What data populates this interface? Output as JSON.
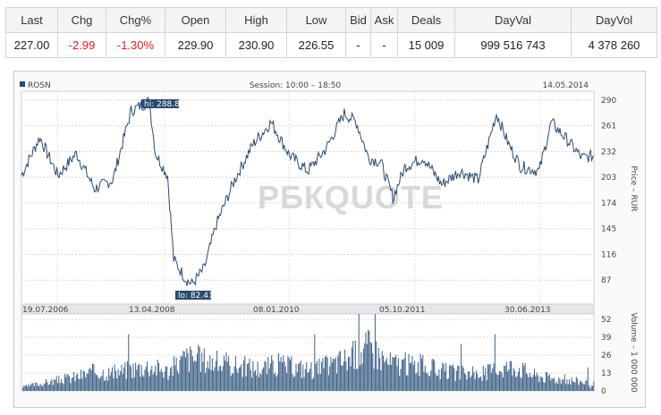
{
  "quote_table": {
    "headers": [
      "Last",
      "Chg",
      "Chg%",
      "Open",
      "High",
      "Low",
      "Bid",
      "Ask",
      "Deals",
      "DayVal",
      "DayVol"
    ],
    "values": [
      "227.00",
      "-2.99",
      "-1.30%",
      "229.90",
      "230.90",
      "226.55",
      "-",
      "-",
      "15 009",
      "999 516 743",
      "4 378 260"
    ],
    "negative_color": "#e0201c"
  },
  "chart_data": [
    {
      "type": "line",
      "ticker": "ROSN",
      "session": "Session: 10:00 – 18:50",
      "date": "14.05.2014",
      "ylabel": "Price – RUR",
      "yticks": [
        87,
        116,
        145,
        174,
        203,
        232,
        261,
        290
      ],
      "ylim": [
        60,
        300
      ],
      "xtick_labels": [
        "19.07.2006",
        "13.04.2008",
        "08.01.2010",
        "05.10.2011",
        "30.06.2013"
      ],
      "hi_label": "hi: 288.8",
      "lo_label": "lo: 82.41",
      "watermark": "РБКQUOTE",
      "line_color": "#2b4a6e",
      "x": [
        "2006-07",
        "2006-10",
        "2007-01",
        "2007-04",
        "2007-07",
        "2007-10",
        "2008-01",
        "2008-04",
        "2008-05",
        "2008-07",
        "2008-08",
        "2008-10",
        "2008-11",
        "2009-01",
        "2009-03",
        "2009-06",
        "2009-09",
        "2009-12",
        "2010-03",
        "2010-06",
        "2010-09",
        "2010-12",
        "2011-02",
        "2011-04",
        "2011-06",
        "2011-08",
        "2011-10",
        "2012-01",
        "2012-04",
        "2012-07",
        "2012-10",
        "2013-01",
        "2013-03",
        "2013-05",
        "2013-08",
        "2013-10",
        "2014-01",
        "2014-03",
        "2014-05"
      ],
      "values": [
        205,
        248,
        205,
        230,
        190,
        200,
        278,
        288.8,
        230,
        205,
        110,
        88,
        82.41,
        100,
        150,
        200,
        240,
        265,
        228,
        210,
        235,
        275,
        265,
        225,
        220,
        180,
        215,
        225,
        195,
        210,
        200,
        275,
        240,
        215,
        210,
        265,
        242,
        225,
        227
      ]
    },
    {
      "type": "bar",
      "ylabel": "Volume – 1 000 000",
      "yticks": [
        0,
        13,
        26,
        39,
        52
      ],
      "ylim": [
        0,
        56
      ],
      "bar_color": "#3d5f86",
      "x": [
        "2006-07",
        "2006-10",
        "2007-01",
        "2007-04",
        "2007-07",
        "2007-10",
        "2008-01",
        "2008-04",
        "2008-07",
        "2008-10",
        "2009-01",
        "2009-04",
        "2009-07",
        "2009-10",
        "2010-01",
        "2010-04",
        "2010-07",
        "2010-10",
        "2011-01",
        "2011-04",
        "2011-07",
        "2011-10",
        "2012-01",
        "2012-04",
        "2012-07",
        "2012-10",
        "2013-01",
        "2013-04",
        "2013-07",
        "2013-10",
        "2014-01",
        "2014-04"
      ],
      "values": [
        4,
        8,
        12,
        16,
        22,
        20,
        25,
        28,
        22,
        38,
        35,
        30,
        28,
        25,
        30,
        26,
        24,
        30,
        38,
        50,
        32,
        30,
        28,
        22,
        20,
        18,
        25,
        28,
        18,
        14,
        12,
        10
      ]
    }
  ]
}
